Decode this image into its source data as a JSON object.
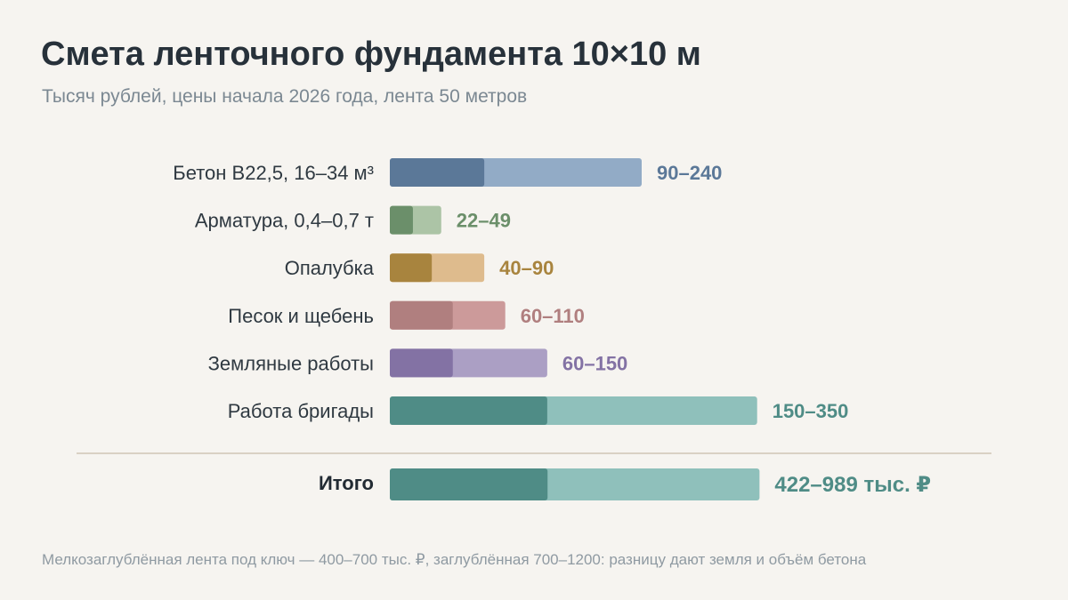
{
  "header": {
    "title": "Смета ленточного фундамента 10×10 м",
    "subtitle": "Тысяч рублей, цены начала 2026 года, лента 50 метров"
  },
  "footnote": "Мелкозаглублённая лента под ключ — 400–700 тыс. ₽, заглублённая 700–1200: разницу дают земля и объём бетона",
  "chart_data": {
    "type": "bar",
    "orientation": "horizontal",
    "style": "range",
    "title": "Смета ленточного фундамента 10×10 м",
    "subtitle": "Тысяч рублей, цены начала 2026 года, лента 50 метров",
    "unit": "тыс. ₽",
    "categories": [
      "Бетон В22,5, 16–34 м³",
      "Арматура, 0,4–0,7 т",
      "Опалубка",
      "Песок и щебень",
      "Земляные работы",
      "Работа бригады"
    ],
    "ranges": [
      {
        "min": 90,
        "max": 240,
        "label": "90–240",
        "color_dark": "#5b7898",
        "color_light": "#92abc6"
      },
      {
        "min": 22,
        "max": 49,
        "label": "22–49",
        "color_dark": "#6b8f6a",
        "color_light": "#acc4a6"
      },
      {
        "min": 40,
        "max": 90,
        "label": "40–90",
        "color_dark": "#a8843e",
        "color_light": "#debb8d"
      },
      {
        "min": 60,
        "max": 110,
        "label": "60–110",
        "color_dark": "#b07f7f",
        "color_light": "#cc9a9a"
      },
      {
        "min": 60,
        "max": 150,
        "label": "60–150",
        "color_dark": "#8372a4",
        "color_light": "#ab9fc4"
      },
      {
        "min": 150,
        "max": 350,
        "label": "150–350",
        "color_dark": "#4f8c86",
        "color_light": "#8fc0bb"
      }
    ],
    "total": {
      "label": "Итого",
      "min": 422,
      "max": 989,
      "value_label": "422–989 тыс. ₽",
      "color_dark": "#4f8c86",
      "color_light": "#8fc0bb"
    },
    "total_scale_max": 1000,
    "xlim": [
      0,
      350
    ],
    "grid": false,
    "legend": "none"
  }
}
